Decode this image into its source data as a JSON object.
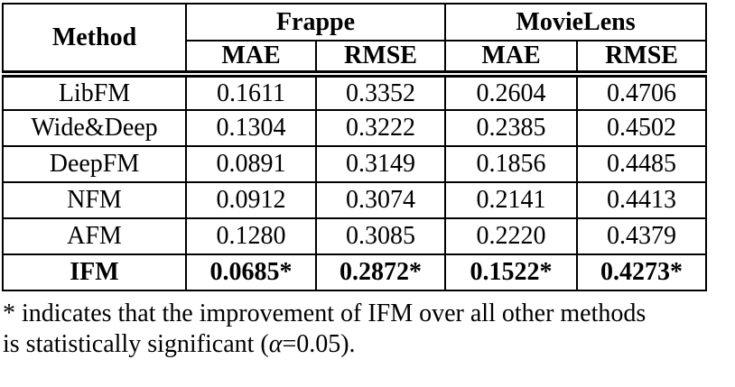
{
  "table": {
    "header": {
      "method_label": "Method",
      "groups": [
        {
          "label": "Frappe"
        },
        {
          "label": "MovieLens"
        }
      ],
      "subheaders": [
        "MAE",
        "RMSE",
        "MAE",
        "RMSE"
      ]
    },
    "rows": [
      {
        "method": "LibFM",
        "values": [
          "0.1611",
          "0.3352",
          "0.2604",
          "0.4706"
        ]
      },
      {
        "method": "Wide&Deep",
        "values": [
          "0.1304",
          "0.3222",
          "0.2385",
          "0.4502"
        ]
      },
      {
        "method": "DeepFM",
        "values": [
          "0.0891",
          "0.3149",
          "0.1856",
          "0.4485"
        ]
      },
      {
        "method": "NFM",
        "values": [
          "0.0912",
          "0.3074",
          "0.2141",
          "0.4413"
        ]
      },
      {
        "method": "AFM",
        "values": [
          "0.1280",
          "0.3085",
          "0.2220",
          "0.4379"
        ]
      },
      {
        "method": "IFM",
        "values": [
          "0.0685*",
          "0.2872*",
          "0.1522*",
          "0.4273*"
        ]
      }
    ]
  },
  "footnote": {
    "line1": "* indicates that the improvement of IFM over all other methods",
    "line2_prefix": "is statistically significant (",
    "alpha_symbol": "α",
    "line2_suffix": "=0.05)."
  },
  "colors": {
    "text": "#000000",
    "border": "#000000",
    "background": "#ffffff"
  }
}
